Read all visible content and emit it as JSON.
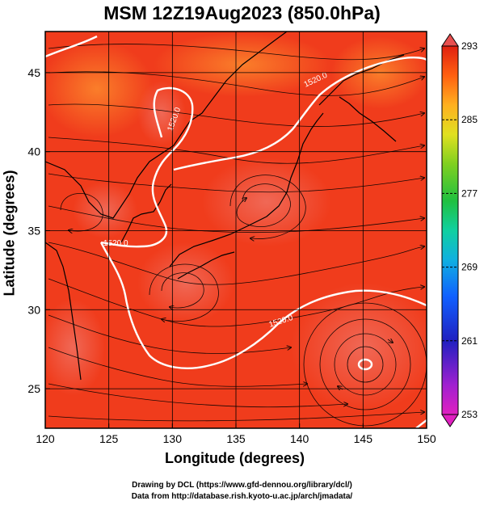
{
  "title": "MSM 12Z19Aug2023 (850.0hPa)",
  "x_axis": {
    "label": "Longitude (degrees)",
    "range": [
      120,
      150
    ],
    "ticks": [
      "120",
      "125",
      "130",
      "135",
      "140",
      "145",
      "150"
    ]
  },
  "y_axis": {
    "label": "Latitude  (degrees)",
    "range": [
      22.5,
      47.6
    ],
    "ticks": [
      "25",
      "30",
      "35",
      "40",
      "45"
    ]
  },
  "colorbar": {
    "range": [
      253,
      293
    ],
    "ticks": [
      "293",
      "285",
      "277",
      "269",
      "261",
      "253"
    ],
    "colors": [
      "#e020c0",
      "#a020d0",
      "#2020c0",
      "#1060ff",
      "#10b0e0",
      "#10d0a0",
      "#20c040",
      "#80d020",
      "#e0e020",
      "#ffb020",
      "#ff6010",
      "#e02010"
    ]
  },
  "contours": {
    "label": "1520.0",
    "color": "#ffffff"
  },
  "typhoon_center": {
    "lon": 145.3,
    "lat": 27.0
  },
  "credits": {
    "line1": "Drawing by DCL (https://www.gfd-dennou.org/library/dcl/)",
    "line2": "Data from http://database.rish.kyoto-u.ac.jp/arch/jmadata/"
  }
}
